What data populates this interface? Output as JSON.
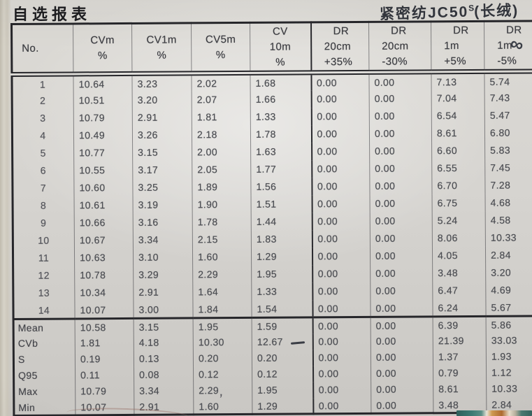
{
  "page": {
    "title": "自选报表",
    "handwritten_note": {
      "prefix": "紧密纺JC50",
      "superscript": "S",
      "suffix": "(长绒)"
    },
    "marks": {
      "infinity": "∞",
      "comma": ","
    },
    "colors": {
      "paper": "#d6d4d0",
      "ink": "#33363d",
      "table_border": "#26262a",
      "print_text": "#4b4d52"
    }
  },
  "table": {
    "headers": [
      [
        "No."
      ],
      [
        "CVm",
        "%"
      ],
      [
        "CV1m",
        "%"
      ],
      [
        "CV5m",
        "%"
      ],
      [
        "CV",
        "10m",
        "%"
      ],
      [
        "DR",
        "20cm",
        "+35%"
      ],
      [
        "DR",
        "20cm",
        "-30%"
      ],
      [
        "DR",
        "1m",
        "+5%"
      ],
      [
        "DR",
        "1m",
        "-5%"
      ]
    ],
    "rows": [
      [
        "1",
        "10.64",
        "3.23",
        "2.02",
        "1.68",
        "0.00",
        "0.00",
        "7.13",
        "5.74"
      ],
      [
        "2",
        "10.51",
        "3.20",
        "2.07",
        "1.66",
        "0.00",
        "0.00",
        "7.04",
        "7.43"
      ],
      [
        "3",
        "10.79",
        "2.91",
        "1.81",
        "1.33",
        "0.00",
        "0.00",
        "6.54",
        "5.47"
      ],
      [
        "4",
        "10.49",
        "3.26",
        "2.18",
        "1.78",
        "0.00",
        "0.00",
        "8.61",
        "6.80"
      ],
      [
        "5",
        "10.77",
        "3.15",
        "2.00",
        "1.63",
        "0.00",
        "0.00",
        "6.60",
        "5.83"
      ],
      [
        "6",
        "10.55",
        "3.17",
        "2.05",
        "1.77",
        "0.00",
        "0.00",
        "6.55",
        "7.45"
      ],
      [
        "7",
        "10.60",
        "3.25",
        "1.89",
        "1.56",
        "0.00",
        "0.00",
        "6.70",
        "7.28"
      ],
      [
        "8",
        "10.61",
        "3.19",
        "1.90",
        "1.51",
        "0.00",
        "0.00",
        "6.75",
        "4.68"
      ],
      [
        "9",
        "10.66",
        "3.16",
        "1.78",
        "1.44",
        "0.00",
        "0.00",
        "5.24",
        "4.58"
      ],
      [
        "10",
        "10.67",
        "3.34",
        "2.15",
        "1.83",
        "0.00",
        "0.00",
        "8.06",
        "10.33"
      ],
      [
        "11",
        "10.63",
        "3.10",
        "1.60",
        "1.29",
        "0.00",
        "0.00",
        "4.05",
        "2.84"
      ],
      [
        "12",
        "10.78",
        "3.29",
        "2.29",
        "1.95",
        "0.00",
        "0.00",
        "3.48",
        "3.20"
      ],
      [
        "13",
        "10.34",
        "2.91",
        "1.64",
        "1.33",
        "0.00",
        "0.00",
        "6.47",
        "4.69"
      ],
      [
        "14",
        "10.07",
        "3.00",
        "1.84",
        "1.54",
        "0.00",
        "0.00",
        "6.24",
        "5.67"
      ]
    ],
    "summary_rows": [
      [
        "Mean",
        "10.58",
        "3.15",
        "1.95",
        "1.59",
        "0.00",
        "0.00",
        "6.39",
        "5.86"
      ],
      [
        "CVb",
        "1.81",
        "4.18",
        "10.30",
        "12.67",
        "0.00",
        "0.00",
        "21.39",
        "33.03"
      ],
      [
        "S",
        "0.19",
        "0.13",
        "0.20",
        "0.20",
        "0.00",
        "0.00",
        "1.37",
        "1.93"
      ],
      [
        "Q95",
        "0.11",
        "0.08",
        "0.12",
        "0.12",
        "0.00",
        "0.00",
        "0.79",
        "1.12"
      ],
      [
        "Max",
        "10.79",
        "3.34",
        "2.29",
        "1.95",
        "0.00",
        "0.00",
        "8.61",
        "10.33"
      ],
      [
        "Min",
        "10.07",
        "2.91",
        "1.60",
        "1.29",
        "0.00",
        "0.00",
        "3.48",
        "2.84"
      ]
    ]
  }
}
